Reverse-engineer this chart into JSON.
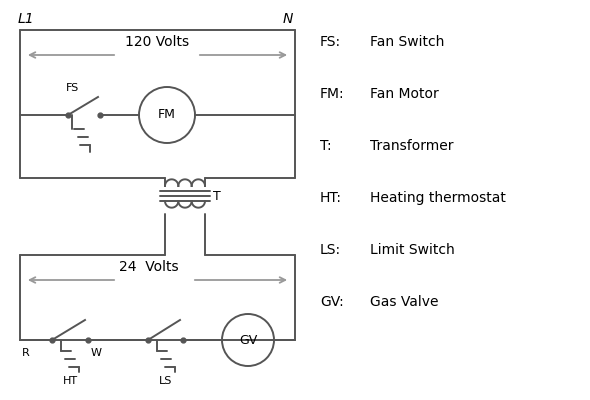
{
  "bg_color": "#ffffff",
  "line_color": "#555555",
  "arrow_color": "#999999",
  "legend_items": [
    [
      "FS:",
      "Fan Switch"
    ],
    [
      "FM:",
      "Fan Motor"
    ],
    [
      "T:",
      "Transformer"
    ],
    [
      "HT:",
      "Heating thermostat"
    ],
    [
      "LS:",
      "Limit Switch"
    ],
    [
      "GV:",
      "Gas Valve"
    ]
  ]
}
